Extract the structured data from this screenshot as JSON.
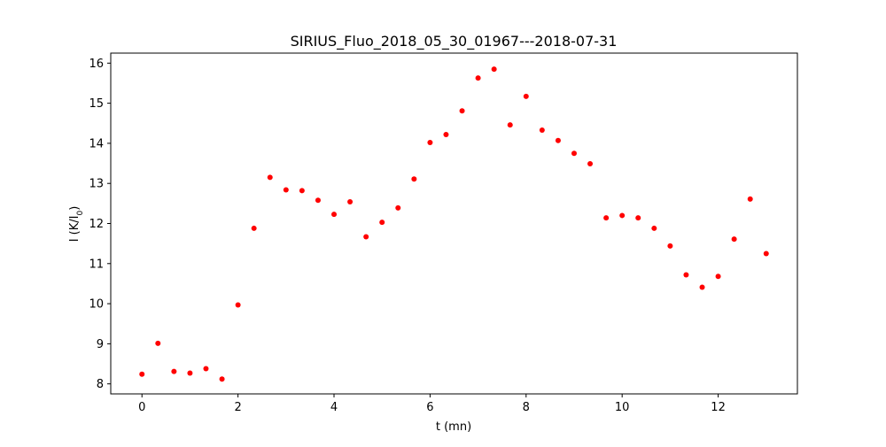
{
  "chart_data": {
    "type": "scatter",
    "title": "SIRIUS_Fluo_2018_05_30_01967---2018-07-31",
    "xlabel": "t (mn)",
    "ylabel_main": "I (K/I",
    "ylabel_sub": "0",
    "ylabel_close": ")",
    "xlim": [
      -0.65,
      13.65
    ],
    "ylim": [
      7.75,
      16.25
    ],
    "xticks": [
      0,
      2,
      4,
      6,
      8,
      10,
      12
    ],
    "yticks": [
      8,
      9,
      10,
      11,
      12,
      13,
      14,
      15,
      16
    ],
    "grid": false,
    "marker_color": "#ff0000",
    "series": [
      {
        "x": [
          0,
          0.333,
          0.667,
          1.0,
          1.333,
          1.667,
          2.0,
          2.333,
          2.667,
          3.0,
          3.333,
          3.667,
          4.0,
          4.333,
          4.667,
          5.0,
          5.333,
          5.667,
          6.0,
          6.333,
          6.667,
          7.0,
          7.333,
          7.667,
          8.0,
          8.333,
          8.667,
          9.0,
          9.333,
          9.667,
          10.0,
          10.333,
          10.667,
          11.0,
          11.333,
          11.667,
          12.0,
          12.333,
          12.667,
          13.0
        ],
        "y": [
          8.24,
          9.01,
          8.31,
          8.27,
          8.38,
          8.12,
          9.97,
          11.88,
          13.15,
          12.84,
          12.82,
          12.58,
          12.23,
          12.54,
          11.67,
          12.03,
          12.39,
          13.11,
          14.02,
          14.22,
          14.81,
          15.63,
          15.85,
          14.46,
          15.17,
          14.33,
          14.07,
          13.75,
          13.49,
          12.14,
          12.2,
          12.14,
          11.88,
          11.44,
          10.72,
          10.41,
          10.68,
          11.61,
          12.61,
          11.25
        ]
      }
    ]
  }
}
